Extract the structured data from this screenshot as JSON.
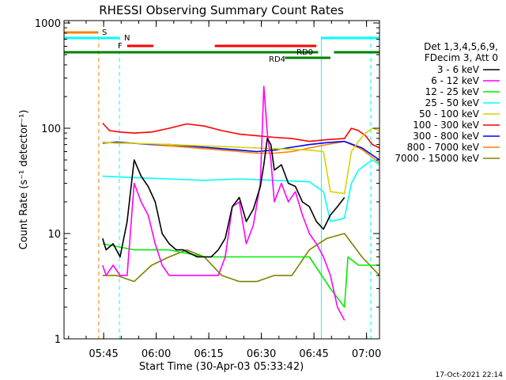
{
  "chart_data": {
    "type": "line",
    "title": "RHESSI Observing Summary Count Rates",
    "xlabel": "Start Time (30-Apr-03 05:33:42)",
    "ylabel": "Count Rate (s⁻¹ detector⁻¹)",
    "yscale": "log",
    "ylim": [
      1,
      1000
    ],
    "xlim_minutes": [
      0,
      90
    ],
    "x_unit": "minutes since 05:33:42",
    "x_ticks": [
      {
        "value": 11.3,
        "label": "05:45"
      },
      {
        "value": 26.3,
        "label": "06:00"
      },
      {
        "value": 41.3,
        "label": "06:15"
      },
      {
        "value": 56.3,
        "label": "06:30"
      },
      {
        "value": 71.3,
        "label": "06:45"
      },
      {
        "value": 86.3,
        "label": "07:00"
      }
    ],
    "y_ticks": [
      {
        "value": 1,
        "label": "1"
      },
      {
        "value": 10,
        "label": "10"
      },
      {
        "value": 100,
        "label": "100"
      },
      {
        "value": 1000,
        "label": "1000"
      }
    ],
    "legend_header": [
      "Det 1,3,4,5,6,9,",
      "FDecim 3, Att 0"
    ],
    "legend_position": "right",
    "timestamp": "17-Oct-2021 22:14",
    "flag_labels": {
      "S": "S",
      "N": "N",
      "F": "F",
      "RD0": "RD0",
      "RD4": "RD4"
    },
    "series": [
      {
        "name": "3 - 6 keV",
        "color": "#000000",
        "x": [
          11,
          12,
          14,
          16,
          18,
          20,
          22,
          24,
          26,
          28,
          30,
          32,
          34,
          38,
          42,
          44,
          46,
          48,
          50,
          52,
          54,
          56,
          57,
          58,
          59,
          60,
          62,
          64,
          66,
          68,
          70,
          72,
          74,
          76,
          78,
          80
        ],
        "y": [
          9,
          7,
          8,
          6,
          13,
          50,
          35,
          28,
          20,
          10,
          8,
          7,
          7,
          6,
          6,
          7,
          9,
          18,
          22,
          13,
          17,
          28,
          45,
          80,
          70,
          40,
          45,
          30,
          28,
          20,
          18,
          13,
          11,
          15,
          18,
          22
        ]
      },
      {
        "name": "6 - 12 keV",
        "color": "#ff00ff",
        "x": [
          11,
          12,
          14,
          16,
          18,
          20,
          22,
          24,
          26,
          28,
          30,
          32,
          34,
          38,
          42,
          44,
          46,
          48,
          50,
          52,
          54,
          56,
          57,
          58,
          59,
          60,
          62,
          64,
          66,
          68,
          70,
          72,
          74,
          76,
          78,
          80
        ],
        "y": [
          5,
          4,
          5,
          4,
          4,
          30,
          20,
          15,
          8,
          5,
          4,
          4,
          4,
          4,
          4,
          4,
          6,
          18,
          20,
          8,
          12,
          30,
          250,
          90,
          50,
          20,
          30,
          20,
          25,
          15,
          10,
          8,
          6,
          4,
          2,
          1.5
        ]
      },
      {
        "name": "12 - 25 keV",
        "color": "#00ee00",
        "x": [
          11,
          20,
          30,
          40,
          50,
          56,
          60,
          70,
          76,
          80,
          81,
          84,
          86,
          90
        ],
        "y": [
          8,
          7,
          7,
          6,
          6,
          6,
          6,
          6,
          3,
          2,
          6,
          5,
          5,
          5
        ]
      },
      {
        "name": "25 - 50 keV",
        "color": "#00ffff",
        "x": [
          11,
          20,
          30,
          40,
          50,
          60,
          70,
          74,
          76,
          80,
          82,
          84,
          86,
          88,
          90
        ],
        "y": [
          35,
          34,
          33,
          32,
          33,
          32,
          31,
          25,
          13,
          14,
          30,
          40,
          45,
          50,
          45
        ]
      },
      {
        "name": "50 - 100 keV",
        "color": "#d4d400",
        "x": [
          11,
          20,
          30,
          40,
          50,
          60,
          70,
          74,
          76,
          80,
          82,
          84,
          86,
          88,
          90
        ],
        "y": [
          73,
          72,
          70,
          68,
          66,
          64,
          62,
          60,
          25,
          24,
          60,
          75,
          90,
          100,
          95
        ]
      },
      {
        "name": "100 - 300 keV",
        "color": "#ff0000",
        "x": [
          11,
          13,
          16,
          20,
          25,
          30,
          35,
          40,
          45,
          50,
          55,
          60,
          65,
          70,
          75,
          80,
          82,
          84,
          86,
          88,
          90
        ],
        "y": [
          112,
          95,
          92,
          90,
          92,
          100,
          110,
          105,
          95,
          88,
          85,
          82,
          80,
          75,
          78,
          80,
          100,
          95,
          85,
          70,
          65
        ]
      },
      {
        "name": "300 - 800 keV",
        "color": "#0000ff",
        "x": [
          11,
          15,
          20,
          25,
          30,
          35,
          40,
          45,
          50,
          55,
          60,
          65,
          70,
          75,
          80,
          85,
          90
        ],
        "y": [
          72,
          74,
          72,
          70,
          70,
          68,
          66,
          64,
          62,
          60,
          62,
          66,
          70,
          73,
          75,
          65,
          50
        ]
      },
      {
        "name": "800 - 7000 keV",
        "color": "#ff8000",
        "x": [
          11,
          15,
          20,
          25,
          30,
          35,
          40,
          45,
          50,
          55,
          60,
          65,
          70,
          75,
          80,
          85,
          90
        ],
        "y": [
          74,
          72,
          72,
          70,
          68,
          66,
          64,
          62,
          60,
          58,
          58,
          60,
          65,
          70,
          75,
          63,
          47
        ]
      },
      {
        "name": "7000 - 15000 keV",
        "color": "#808000",
        "x": [
          11,
          15,
          20,
          25,
          30,
          35,
          40,
          45,
          50,
          55,
          60,
          65,
          70,
          75,
          80,
          85,
          90
        ],
        "y": [
          4,
          4,
          3.5,
          5,
          6,
          7,
          6,
          4,
          3.5,
          3.5,
          4,
          4,
          7,
          9,
          10,
          6,
          4
        ]
      }
    ],
    "vertical_markers": [
      {
        "x": 9.9,
        "color": "#ff8000",
        "dashed": true
      },
      {
        "x": 15.8,
        "color": "#00ffff",
        "dashed": true
      },
      {
        "x": 73.4,
        "color": "#00ffff",
        "dashed": false
      },
      {
        "x": 87.5,
        "color": "#00ffff",
        "dashed": true
      }
    ],
    "flag_bars": [
      {
        "label": "S",
        "color": "#ff8000",
        "segments": [
          [
            0,
            9.8
          ]
        ]
      },
      {
        "label": "N",
        "color": "#00ffff",
        "segments": [
          [
            0,
            15.8
          ],
          [
            73.4,
            90
          ]
        ]
      },
      {
        "label": "F",
        "color": "#ff0000",
        "segments": [
          [
            18,
            25.5
          ],
          [
            43,
            72
          ]
        ]
      },
      {
        "label": "RD0",
        "color": "#008000",
        "segments": [
          [
            0,
            72.5
          ],
          [
            77,
            90
          ]
        ]
      },
      {
        "label": "RD4",
        "color": "#008000",
        "segments": [
          [
            63,
            76
          ]
        ]
      }
    ]
  }
}
